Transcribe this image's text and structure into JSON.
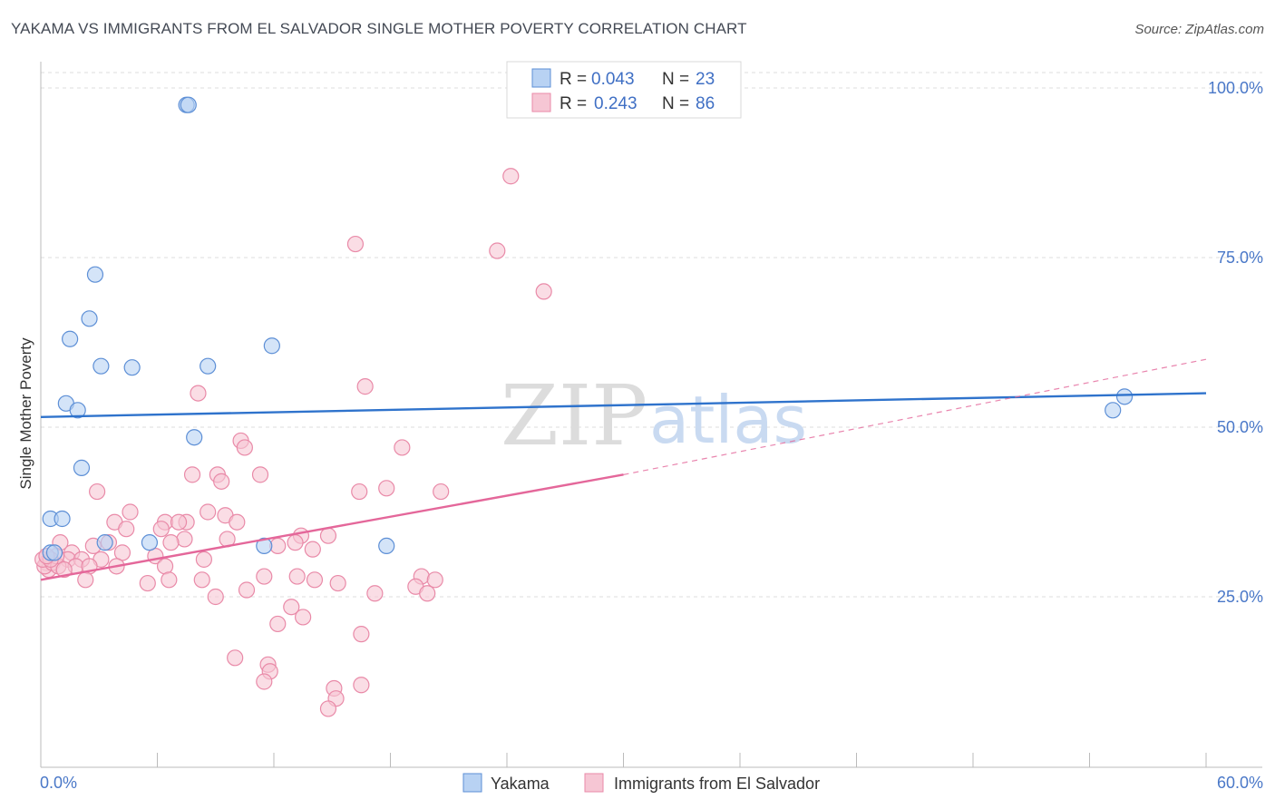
{
  "header": {
    "title": "YAKAMA VS IMMIGRANTS FROM EL SALVADOR SINGLE MOTHER POVERTY CORRELATION CHART",
    "source": "Source: ZipAtlas.com"
  },
  "legend_top": {
    "rows": [
      {
        "r_label": "R =",
        "r_value": "0.043",
        "n_label": "N =",
        "n_value": "23"
      },
      {
        "r_label": "R =",
        "r_value": "0.243",
        "n_label": "N =",
        "n_value": "86"
      }
    ]
  },
  "watermark": {
    "zip": "ZIP",
    "atlas": "atlas"
  },
  "colors": {
    "blue_fill": "#b8d2f3",
    "blue_stroke": "#5d8fd6",
    "blue_line": "#2f73cc",
    "pink_fill": "#f6c6d4",
    "pink_stroke": "#e98aa8",
    "pink_line": "#e4679a",
    "grid": "#dddddd",
    "tick_text": "#4a78c8"
  },
  "chart_data": {
    "type": "scatter",
    "title": "YAKAMA VS IMMIGRANTS FROM EL SALVADOR SINGLE MOTHER POVERTY CORRELATION CHART",
    "xlabel": "",
    "ylabel": "Single Mother Poverty",
    "xlim": [
      0,
      60
    ],
    "ylim": [
      0,
      100
    ],
    "x_ticks_labeled": [
      "0.0%",
      "60.0%"
    ],
    "y_ticks": [
      {
        "value": 25,
        "label": "25.0%"
      },
      {
        "value": 50,
        "label": "50.0%"
      },
      {
        "value": 75,
        "label": "75.0%"
      },
      {
        "value": 100,
        "label": "100.0%"
      }
    ],
    "grid": "horizontal dashed",
    "legend": [
      "Yakama",
      "Immigrants from El Salvador"
    ],
    "series": [
      {
        "name": "Yakama",
        "r": 0.043,
        "n": 23,
        "points": [
          [
            7.5,
            97.5
          ],
          [
            7.6,
            97.5
          ],
          [
            2.8,
            72.5
          ],
          [
            2.5,
            66
          ],
          [
            1.5,
            63
          ],
          [
            11.9,
            62
          ],
          [
            3.1,
            59
          ],
          [
            4.7,
            58.8
          ],
          [
            8.6,
            59
          ],
          [
            1.3,
            53.5
          ],
          [
            1.9,
            52.5
          ],
          [
            7.9,
            48.5
          ],
          [
            2.1,
            44
          ],
          [
            0.5,
            36.5
          ],
          [
            1.1,
            36.5
          ],
          [
            5.6,
            33
          ],
          [
            3.3,
            33
          ],
          [
            11.5,
            32.5
          ],
          [
            17.8,
            32.5
          ],
          [
            0.5,
            31.5
          ],
          [
            0.7,
            31.5
          ],
          [
            55.8,
            54.5
          ],
          [
            55.2,
            52.5
          ]
        ],
        "trend": {
          "x": [
            0,
            60
          ],
          "y": [
            51.5,
            55
          ]
        }
      },
      {
        "name": "Immigrants from El Salvador",
        "r": 0.243,
        "n": 86,
        "points": [
          [
            24.2,
            87
          ],
          [
            23.5,
            76
          ],
          [
            16.2,
            77
          ],
          [
            25.9,
            70
          ],
          [
            16.7,
            56
          ],
          [
            8.1,
            55
          ],
          [
            18.6,
            47
          ],
          [
            10.3,
            48
          ],
          [
            10.5,
            47
          ],
          [
            9.1,
            43
          ],
          [
            11.3,
            43
          ],
          [
            7.8,
            43
          ],
          [
            9.3,
            42
          ],
          [
            17.8,
            41
          ],
          [
            16.4,
            40.5
          ],
          [
            20.6,
            40.5
          ],
          [
            2.9,
            40.5
          ],
          [
            4.6,
            37.5
          ],
          [
            8.6,
            37.5
          ],
          [
            9.5,
            37
          ],
          [
            3.8,
            36
          ],
          [
            6.4,
            36
          ],
          [
            7.5,
            36
          ],
          [
            7.1,
            36
          ],
          [
            10.1,
            36
          ],
          [
            4.4,
            35
          ],
          [
            6.2,
            35
          ],
          [
            13.4,
            34
          ],
          [
            14.8,
            34
          ],
          [
            7.4,
            33.5
          ],
          [
            9.6,
            33.5
          ],
          [
            6.7,
            33
          ],
          [
            3.5,
            33
          ],
          [
            2.7,
            32.5
          ],
          [
            12.2,
            32.5
          ],
          [
            13.1,
            33
          ],
          [
            14.0,
            32
          ],
          [
            1.0,
            33
          ],
          [
            1.6,
            31.5
          ],
          [
            4.2,
            31.5
          ],
          [
            5.9,
            31
          ],
          [
            1.4,
            30.5
          ],
          [
            0.3,
            30
          ],
          [
            2.1,
            30.5
          ],
          [
            3.1,
            30.5
          ],
          [
            8.4,
            30.5
          ],
          [
            6.4,
            29.5
          ],
          [
            1.8,
            29.5
          ],
          [
            0.4,
            29
          ],
          [
            2.5,
            29.5
          ],
          [
            3.9,
            29.5
          ],
          [
            2.3,
            27.5
          ],
          [
            6.6,
            27.5
          ],
          [
            5.5,
            27
          ],
          [
            8.3,
            27.5
          ],
          [
            11.5,
            28
          ],
          [
            13.2,
            28
          ],
          [
            14.1,
            27.5
          ],
          [
            15.3,
            27
          ],
          [
            19.6,
            28
          ],
          [
            20.3,
            27.5
          ],
          [
            19.3,
            26.5
          ],
          [
            10.6,
            26
          ],
          [
            17.2,
            25.5
          ],
          [
            19.9,
            25.5
          ],
          [
            9.0,
            25
          ],
          [
            12.9,
            23.5
          ],
          [
            13.5,
            22
          ],
          [
            12.2,
            21
          ],
          [
            16.5,
            19.5
          ],
          [
            10.0,
            16
          ],
          [
            11.7,
            15
          ],
          [
            11.8,
            14
          ],
          [
            11.5,
            12.5
          ],
          [
            16.5,
            12
          ],
          [
            15.1,
            11.5
          ],
          [
            15.2,
            10
          ],
          [
            14.8,
            8.5
          ],
          [
            0.2,
            29.5
          ],
          [
            0.6,
            30
          ],
          [
            0.9,
            29.5
          ],
          [
            1.2,
            29
          ],
          [
            0.1,
            30.5
          ],
          [
            0.8,
            31
          ],
          [
            0.5,
            30.5
          ],
          [
            0.3,
            31
          ]
        ],
        "trend_solid": {
          "x": [
            0,
            30
          ],
          "y": [
            27.5,
            43
          ]
        },
        "trend_dashed": {
          "x": [
            30,
            60
          ],
          "y": [
            43,
            60
          ]
        }
      }
    ]
  },
  "bottom_legend": {
    "items": [
      {
        "label": "Yakama"
      },
      {
        "label": "Immigrants from El Salvador"
      }
    ]
  }
}
